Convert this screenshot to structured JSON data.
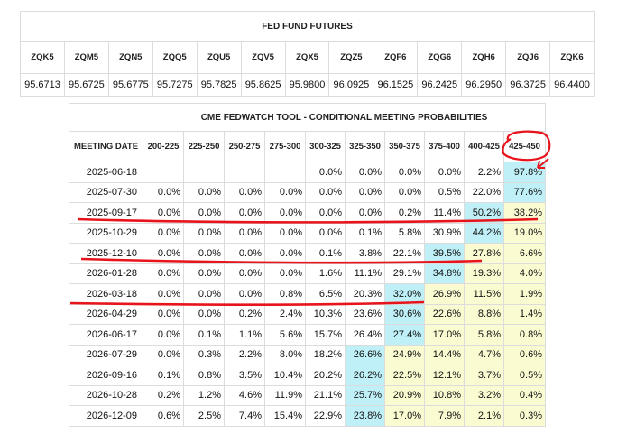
{
  "fed_fund_futures": {
    "title": "FED FUND FUTURES",
    "contracts": [
      {
        "symbol": "ZQK5",
        "price": "95.6713"
      },
      {
        "symbol": "ZQM5",
        "price": "95.6725"
      },
      {
        "symbol": "ZQN5",
        "price": "95.6775"
      },
      {
        "symbol": "ZQQ5",
        "price": "95.7275"
      },
      {
        "symbol": "ZQU5",
        "price": "95.7825"
      },
      {
        "symbol": "ZQV5",
        "price": "95.8625"
      },
      {
        "symbol": "ZQX5",
        "price": "95.9800"
      },
      {
        "symbol": "ZQZ5",
        "price": "96.0925"
      },
      {
        "symbol": "ZQF6",
        "price": "96.1525"
      },
      {
        "symbol": "ZQG6",
        "price": "96.2425"
      },
      {
        "symbol": "ZQH6",
        "price": "96.2950"
      },
      {
        "symbol": "ZQJ6",
        "price": "96.3725"
      },
      {
        "symbol": "ZQK6",
        "price": "96.4400"
      }
    ]
  },
  "fedwatch": {
    "title": "CME FEDWATCH TOOL - CONDITIONAL MEETING PROBABILITIES",
    "date_header": "MEETING DATE",
    "ranges": [
      "200-225",
      "225-250",
      "250-275",
      "275-300",
      "300-325",
      "325-350",
      "350-375",
      "375-400",
      "400-425",
      "425-450"
    ],
    "rows": [
      {
        "date": "2025-06-18",
        "values": [
          "",
          "",
          "",
          "",
          "0.0%",
          "0.0%",
          "0.0%",
          "0.0%",
          "2.2%",
          "97.8%"
        ],
        "highlight": [
          null,
          null,
          null,
          null,
          null,
          null,
          null,
          null,
          null,
          "cyan"
        ]
      },
      {
        "date": "2025-07-30",
        "values": [
          "0.0%",
          "0.0%",
          "0.0%",
          "0.0%",
          "0.0%",
          "0.0%",
          "0.0%",
          "0.5%",
          "22.0%",
          "77.6%"
        ],
        "highlight": [
          null,
          null,
          null,
          null,
          null,
          null,
          null,
          null,
          null,
          "cyan"
        ]
      },
      {
        "date": "2025-09-17",
        "values": [
          "0.0%",
          "0.0%",
          "0.0%",
          "0.0%",
          "0.0%",
          "0.0%",
          "0.2%",
          "11.4%",
          "50.2%",
          "38.2%"
        ],
        "highlight": [
          null,
          null,
          null,
          null,
          null,
          null,
          null,
          null,
          "cyan",
          "yellow"
        ]
      },
      {
        "date": "2025-10-29",
        "values": [
          "0.0%",
          "0.0%",
          "0.0%",
          "0.0%",
          "0.0%",
          "0.1%",
          "5.8%",
          "30.9%",
          "44.2%",
          "19.0%"
        ],
        "highlight": [
          null,
          null,
          null,
          null,
          null,
          null,
          null,
          null,
          "cyan",
          "yellow"
        ]
      },
      {
        "date": "2025-12-10",
        "values": [
          "0.0%",
          "0.0%",
          "0.0%",
          "0.0%",
          "0.1%",
          "3.8%",
          "22.1%",
          "39.5%",
          "27.8%",
          "6.6%"
        ],
        "highlight": [
          null,
          null,
          null,
          null,
          null,
          null,
          null,
          "cyan",
          "yellow",
          "yellow"
        ]
      },
      {
        "date": "2026-01-28",
        "values": [
          "0.0%",
          "0.0%",
          "0.0%",
          "0.0%",
          "1.6%",
          "11.1%",
          "29.1%",
          "34.8%",
          "19.3%",
          "4.0%"
        ],
        "highlight": [
          null,
          null,
          null,
          null,
          null,
          null,
          null,
          "cyan",
          "yellow",
          "yellow"
        ]
      },
      {
        "date": "2026-03-18",
        "values": [
          "0.0%",
          "0.0%",
          "0.0%",
          "0.8%",
          "6.5%",
          "20.3%",
          "32.0%",
          "26.9%",
          "11.5%",
          "1.9%"
        ],
        "highlight": [
          null,
          null,
          null,
          null,
          null,
          null,
          "cyan",
          "yellow",
          "yellow",
          "yellow"
        ]
      },
      {
        "date": "2026-04-29",
        "values": [
          "0.0%",
          "0.0%",
          "0.2%",
          "2.4%",
          "10.3%",
          "23.6%",
          "30.6%",
          "22.6%",
          "8.8%",
          "1.4%"
        ],
        "highlight": [
          null,
          null,
          null,
          null,
          null,
          null,
          "cyan",
          "yellow",
          "yellow",
          "yellow"
        ]
      },
      {
        "date": "2026-06-17",
        "values": [
          "0.0%",
          "0.1%",
          "1.1%",
          "5.6%",
          "15.7%",
          "26.4%",
          "27.4%",
          "17.0%",
          "5.8%",
          "0.8%"
        ],
        "highlight": [
          null,
          null,
          null,
          null,
          null,
          null,
          "cyan",
          "yellow",
          "yellow",
          "yellow"
        ]
      },
      {
        "date": "2026-07-29",
        "values": [
          "0.0%",
          "0.3%",
          "2.2%",
          "8.0%",
          "18.2%",
          "26.6%",
          "24.9%",
          "14.4%",
          "4.7%",
          "0.6%"
        ],
        "highlight": [
          null,
          null,
          null,
          null,
          null,
          "cyan",
          "yellow",
          "yellow",
          "yellow",
          "yellow"
        ]
      },
      {
        "date": "2026-09-16",
        "values": [
          "0.1%",
          "0.8%",
          "3.5%",
          "10.4%",
          "20.2%",
          "26.2%",
          "22.5%",
          "12.1%",
          "3.7%",
          "0.5%"
        ],
        "highlight": [
          null,
          null,
          null,
          null,
          null,
          "cyan",
          "yellow",
          "yellow",
          "yellow",
          "yellow"
        ]
      },
      {
        "date": "2026-10-28",
        "values": [
          "0.2%",
          "1.2%",
          "4.6%",
          "11.9%",
          "21.1%",
          "25.7%",
          "20.9%",
          "10.8%",
          "3.2%",
          "0.4%"
        ],
        "highlight": [
          null,
          null,
          null,
          null,
          null,
          "cyan",
          "yellow",
          "yellow",
          "yellow",
          "yellow"
        ]
      },
      {
        "date": "2026-12-09",
        "values": [
          "0.6%",
          "2.5%",
          "7.4%",
          "15.4%",
          "22.9%",
          "23.8%",
          "17.0%",
          "7.9%",
          "2.1%",
          "0.3%"
        ],
        "highlight": [
          null,
          null,
          null,
          null,
          null,
          "cyan",
          "yellow",
          "yellow",
          "yellow",
          "yellow"
        ]
      }
    ]
  },
  "annotation_color": "#e8141c",
  "highlight_colors": {
    "cyan": "#bff0f7",
    "yellow": "#fbfbd2"
  }
}
